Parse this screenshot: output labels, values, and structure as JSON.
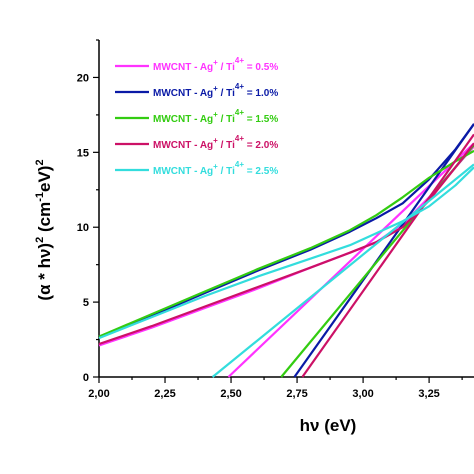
{
  "chart_data": {
    "type": "line",
    "title": "",
    "xlabel": "hν (eV)",
    "ylabel_parts": {
      "lead": "(α * hν)",
      "exp1": "2",
      "mid": " (cm",
      "exp2": "-1",
      "tail": "eV)",
      "exp3": "2"
    },
    "xlim": [
      2.0,
      3.42
    ],
    "ylim": [
      0,
      22.5
    ],
    "xticks": [
      "2,00",
      "2,25",
      "2,50",
      "2,75",
      "3,00",
      "3,25"
    ],
    "xtick_values": [
      2.0,
      2.25,
      2.5,
      2.75,
      3.0,
      3.25
    ],
    "yticks": [
      "0",
      "5",
      "10",
      "15",
      "20"
    ],
    "ytick_values": [
      0,
      5,
      10,
      15,
      20
    ],
    "grid": false,
    "legend_placement": "top-left",
    "series": [
      {
        "name_parts": [
          "MWCNT - Ag",
          "+",
          " / Ti",
          "4+",
          " = 0.5%"
        ],
        "color": "#ff33ff",
        "x": [
          2.0,
          2.2,
          2.4,
          2.6,
          2.8,
          2.95,
          3.05,
          3.15,
          3.25,
          3.35,
          3.42
        ],
        "y": [
          2.1,
          3.3,
          4.6,
          5.9,
          7.3,
          8.3,
          9.0,
          10.2,
          12.0,
          14.0,
          15.4
        ],
        "tangent": [
          [
            2.49,
            0
          ],
          [
            3.42,
            15.6
          ]
        ]
      },
      {
        "name_parts": [
          "MWCNT - Ag",
          "+",
          " / Ti",
          "4+",
          " = 1.0%"
        ],
        "color": "#0a1aa6",
        "x": [
          2.0,
          2.2,
          2.4,
          2.6,
          2.8,
          2.95,
          3.05,
          3.15,
          3.25,
          3.35,
          3.42
        ],
        "y": [
          2.7,
          4.1,
          5.6,
          7.1,
          8.5,
          9.7,
          10.6,
          11.6,
          13.2,
          15.2,
          16.9
        ],
        "tangent": [
          [
            2.74,
            0
          ],
          [
            3.42,
            16.9
          ]
        ]
      },
      {
        "name_parts": [
          "MWCNT - Ag",
          "+",
          " / Ti",
          "4+",
          " = 1.5%"
        ],
        "color": "#33cc11",
        "x": [
          2.0,
          2.2,
          2.4,
          2.6,
          2.8,
          2.95,
          3.05,
          3.15,
          3.25,
          3.35,
          3.42
        ],
        "y": [
          2.7,
          4.2,
          5.7,
          7.2,
          8.6,
          9.8,
          10.8,
          12.0,
          13.3,
          14.4,
          15.1
        ],
        "tangent": [
          [
            2.69,
            0
          ],
          [
            3.42,
            15.5
          ]
        ]
      },
      {
        "name_parts": [
          "MWCNT - Ag",
          "+",
          " / Ti",
          "4+",
          " = 2.0%"
        ],
        "color": "#cc1166",
        "x": [
          2.0,
          2.2,
          2.4,
          2.6,
          2.8,
          2.95,
          3.05,
          3.15,
          3.25,
          3.35,
          3.42
        ],
        "y": [
          2.2,
          3.4,
          4.7,
          6.0,
          7.3,
          8.3,
          9.0,
          10.0,
          11.8,
          14.0,
          15.6
        ],
        "tangent": [
          [
            2.77,
            0
          ],
          [
            3.42,
            16.2
          ]
        ]
      },
      {
        "name_parts": [
          "MWCNT - Ag",
          "+",
          " / Ti",
          "4+",
          " = 2.5%"
        ],
        "color": "#33dddd",
        "x": [
          2.0,
          2.2,
          2.4,
          2.6,
          2.8,
          2.95,
          3.05,
          3.15,
          3.25,
          3.35,
          3.42
        ],
        "y": [
          2.6,
          4.0,
          5.4,
          6.7,
          7.9,
          8.8,
          9.6,
          10.4,
          11.4,
          12.8,
          14.0
        ],
        "tangent": [
          [
            2.43,
            0
          ],
          [
            3.42,
            14.2
          ]
        ]
      }
    ]
  }
}
